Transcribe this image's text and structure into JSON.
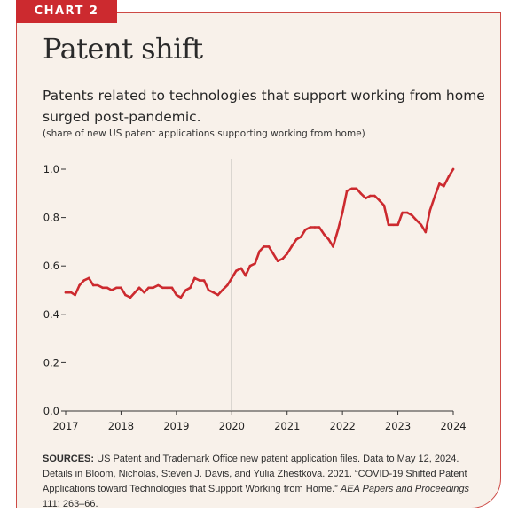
{
  "badge": "CHART 2",
  "title": "Patent shift",
  "subtitle": "Patents related to technologies that support working from home surged post-pandemic.",
  "units": "(share of new US patent applications supporting working from home)",
  "sources": {
    "label": "SOURCES:",
    "text1": " US Patent and Trademark Office new patent application files. Data to May 12, 2024. Details in Bloom, Nicholas, Steven J. Davis, and Yulia Zhestkova. 2021. “COVID-19 Shifted Patent Applications toward Technologies that Support Working from Home.” ",
    "journal": "AEA Papers and Proceedings",
    "text2": " 111: 263–66."
  },
  "colors": {
    "accent": "#cc2a2f",
    "line": "#cc2a2f",
    "background": "#f8f1ea",
    "marker": "#9a9a9a"
  },
  "chart_data": {
    "type": "line",
    "xlim": [
      2017,
      2024
    ],
    "ylim": [
      0,
      1.0
    ],
    "xticks": [
      2017,
      2018,
      2019,
      2020,
      2021,
      2022,
      2023,
      2024
    ],
    "yticks": [
      "0.0",
      "0.2",
      "0.4",
      "0.6",
      "0.8",
      "1.0"
    ],
    "grid": false,
    "vertical_marker_x": 2020,
    "series": [
      {
        "x": [
          2017.0,
          2017.1,
          2017.17,
          2017.25,
          2017.33,
          2017.42,
          2017.5,
          2017.58,
          2017.67,
          2017.75,
          2017.83,
          2017.92,
          2018.0,
          2018.08,
          2018.17,
          2018.25,
          2018.33,
          2018.42,
          2018.5,
          2018.58,
          2018.67,
          2018.75,
          2018.83,
          2018.92,
          2019.0,
          2019.08,
          2019.17,
          2019.25,
          2019.33,
          2019.42,
          2019.5,
          2019.58,
          2019.67,
          2019.75,
          2019.83,
          2019.92,
          2020.0,
          2020.08,
          2020.17,
          2020.25,
          2020.33,
          2020.42,
          2020.5,
          2020.58,
          2020.67,
          2020.75,
          2020.83,
          2020.92,
          2021.0,
          2021.08,
          2021.17,
          2021.25,
          2021.33,
          2021.42,
          2021.5,
          2021.58,
          2021.67,
          2021.75,
          2021.83,
          2021.92,
          2022.0,
          2022.08,
          2022.17,
          2022.25,
          2022.33,
          2022.42,
          2022.5,
          2022.58,
          2022.67,
          2022.75,
          2022.83,
          2022.92,
          2023.0,
          2023.08,
          2023.17,
          2023.25,
          2023.33,
          2023.42,
          2023.5,
          2023.58,
          2023.67,
          2023.75,
          2023.83,
          2023.92,
          2024.0
        ],
        "y": [
          0.49,
          0.49,
          0.48,
          0.52,
          0.54,
          0.55,
          0.52,
          0.52,
          0.51,
          0.51,
          0.5,
          0.51,
          0.51,
          0.48,
          0.47,
          0.49,
          0.51,
          0.49,
          0.51,
          0.51,
          0.52,
          0.51,
          0.51,
          0.51,
          0.48,
          0.47,
          0.5,
          0.51,
          0.55,
          0.54,
          0.54,
          0.5,
          0.49,
          0.48,
          0.5,
          0.52,
          0.55,
          0.58,
          0.59,
          0.56,
          0.6,
          0.61,
          0.66,
          0.68,
          0.68,
          0.65,
          0.62,
          0.63,
          0.65,
          0.68,
          0.71,
          0.72,
          0.75,
          0.76,
          0.76,
          0.76,
          0.73,
          0.71,
          0.68,
          0.75,
          0.82,
          0.91,
          0.92,
          0.92,
          0.9,
          0.88,
          0.89,
          0.89,
          0.87,
          0.85,
          0.77,
          0.77,
          0.77,
          0.82,
          0.82,
          0.81,
          0.79,
          0.77,
          0.74,
          0.83,
          0.89,
          0.94,
          0.93,
          0.97,
          1.0
        ]
      }
    ]
  }
}
